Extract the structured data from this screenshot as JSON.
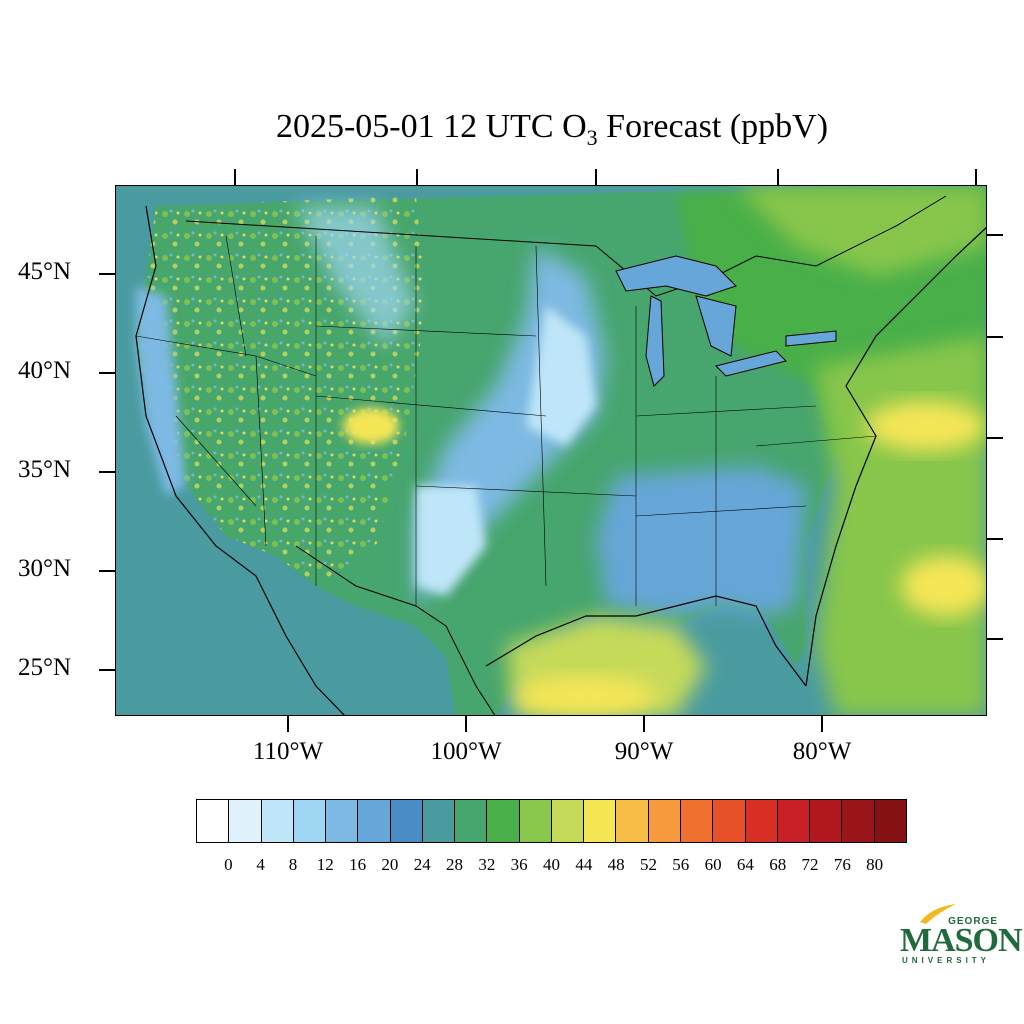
{
  "title": {
    "prefix": "2025-05-01 12 UTC O",
    "subscript": "3",
    "suffix": " Forecast (ppbV)"
  },
  "map": {
    "lat_labels": [
      "45°N",
      "40°N",
      "35°N",
      "30°N",
      "25°N"
    ],
    "lon_labels": [
      "110°W",
      "100°W",
      "90°W",
      "80°W"
    ]
  },
  "colorbar": {
    "labels": [
      "0",
      "4",
      "8",
      "12",
      "16",
      "20",
      "24",
      "28",
      "32",
      "36",
      "40",
      "44",
      "48",
      "52",
      "56",
      "60",
      "64",
      "68",
      "72",
      "76",
      "80"
    ],
    "colors": [
      "#ffffff",
      "#dff1fb",
      "#bfe6f8",
      "#9fd6f3",
      "#7db9e3",
      "#66a6d8",
      "#4a8cc6",
      "#4a9ba0",
      "#47a56e",
      "#4aaf48",
      "#88c64c",
      "#c6da5a",
      "#f5e656",
      "#f7be47",
      "#f79a3d",
      "#f0702f",
      "#e8502a",
      "#d93026",
      "#c91f26",
      "#b0181e",
      "#9a1519",
      "#861214"
    ]
  },
  "logo": {
    "top": "GEORGE",
    "middle": "MASON",
    "bottom": "UNIVERSITY"
  }
}
